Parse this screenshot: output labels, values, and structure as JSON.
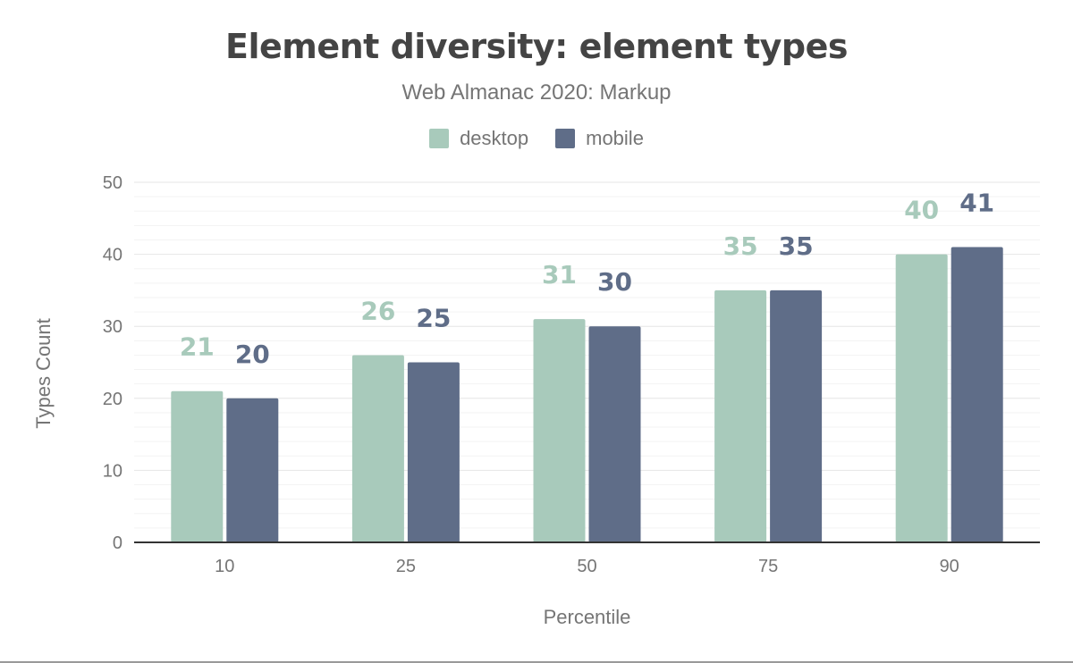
{
  "chart_data": {
    "type": "bar",
    "title": "Element diversity: element types",
    "subtitle": "Web Almanac 2020: Markup",
    "xlabel": "Percentile",
    "ylabel": "Types Count",
    "categories": [
      "10",
      "25",
      "50",
      "75",
      "90"
    ],
    "series": [
      {
        "name": "desktop",
        "color": "#a8cabb",
        "values": [
          21,
          26,
          31,
          35,
          40
        ]
      },
      {
        "name": "mobile",
        "color": "#5f6d88",
        "values": [
          20,
          25,
          30,
          35,
          41
        ]
      }
    ],
    "ylim": [
      0,
      50
    ],
    "yticks": [
      0,
      10,
      20,
      30,
      40,
      50
    ],
    "grid": true,
    "legend": "top-center",
    "data_labels": true
  }
}
